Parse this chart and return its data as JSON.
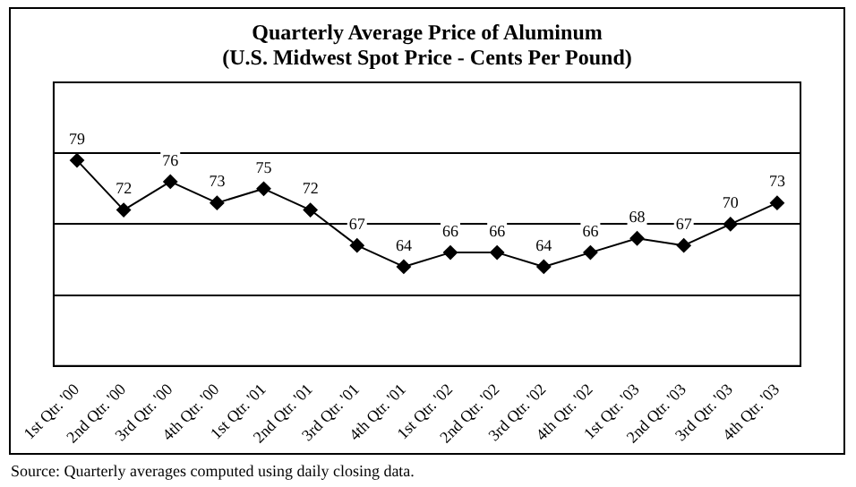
{
  "chart_data": {
    "type": "line",
    "title": "Quarterly Average Price of Aluminum",
    "subtitle": "(U.S. Midwest Spot Price - Cents Per Pound)",
    "categories": [
      "1st Qtr. '00",
      "2nd Qtr. '00",
      "3rd Qtr. '00",
      "4th Qtr. '00",
      "1st Qtr. '01",
      "2nd Qtr. '01",
      "3rd Qtr. '01",
      "4th Qtr. '01",
      "1st Qtr. '02",
      "2nd Qtr. '02",
      "3rd Qtr. '02",
      "4th Qtr. '02",
      "1st Qtr. '03",
      "2nd Qtr. '03",
      "3rd Qtr. '03",
      "4th Qtr. '03"
    ],
    "series": [
      {
        "color": "#000000",
        "values": [
          79,
          72,
          76,
          73,
          75,
          72,
          67,
          64,
          66,
          66,
          64,
          66,
          68,
          67,
          70,
          73
        ]
      }
    ],
    "ylim": [
      50,
      90
    ],
    "yticks": [
      {
        "value": 50,
        "label": null
      },
      {
        "value": 60,
        "label": null
      },
      {
        "value": 70,
        "label": null
      },
      {
        "value": 80,
        "label": null
      },
      {
        "value": 90,
        "label": null
      }
    ],
    "tick_labels": "x",
    "grid": "y",
    "marker": "diamond",
    "line_style": "solid",
    "data_labels": true,
    "legend": false,
    "annotations": [
      "Source:  Quarterly averages computed using daily closing data."
    ]
  }
}
